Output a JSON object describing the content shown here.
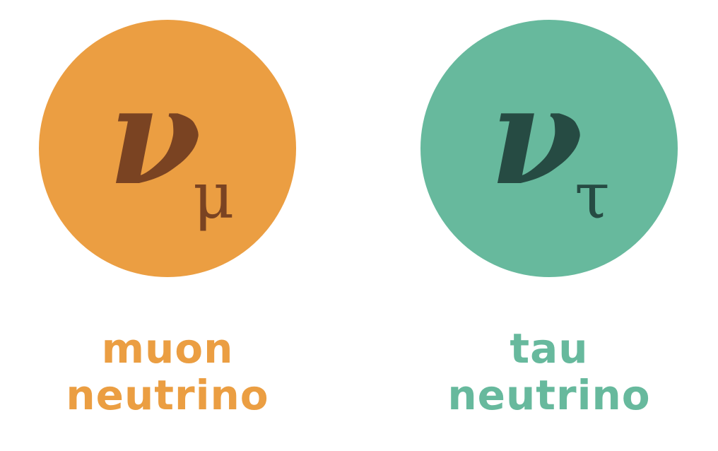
{
  "particles": [
    {
      "symbol": "ν",
      "subscript": "μ",
      "label_line1": "muon",
      "label_line2": "neutrino",
      "circle_color": "#EB9E42",
      "symbol_color": "#7A4322",
      "label_color": "#EB9E42"
    },
    {
      "symbol": "ν",
      "subscript": "τ",
      "label_line1": "tau",
      "label_line2": "neutrino",
      "circle_color": "#67B99D",
      "symbol_color": "#264B43",
      "label_color": "#67B99D"
    }
  ]
}
